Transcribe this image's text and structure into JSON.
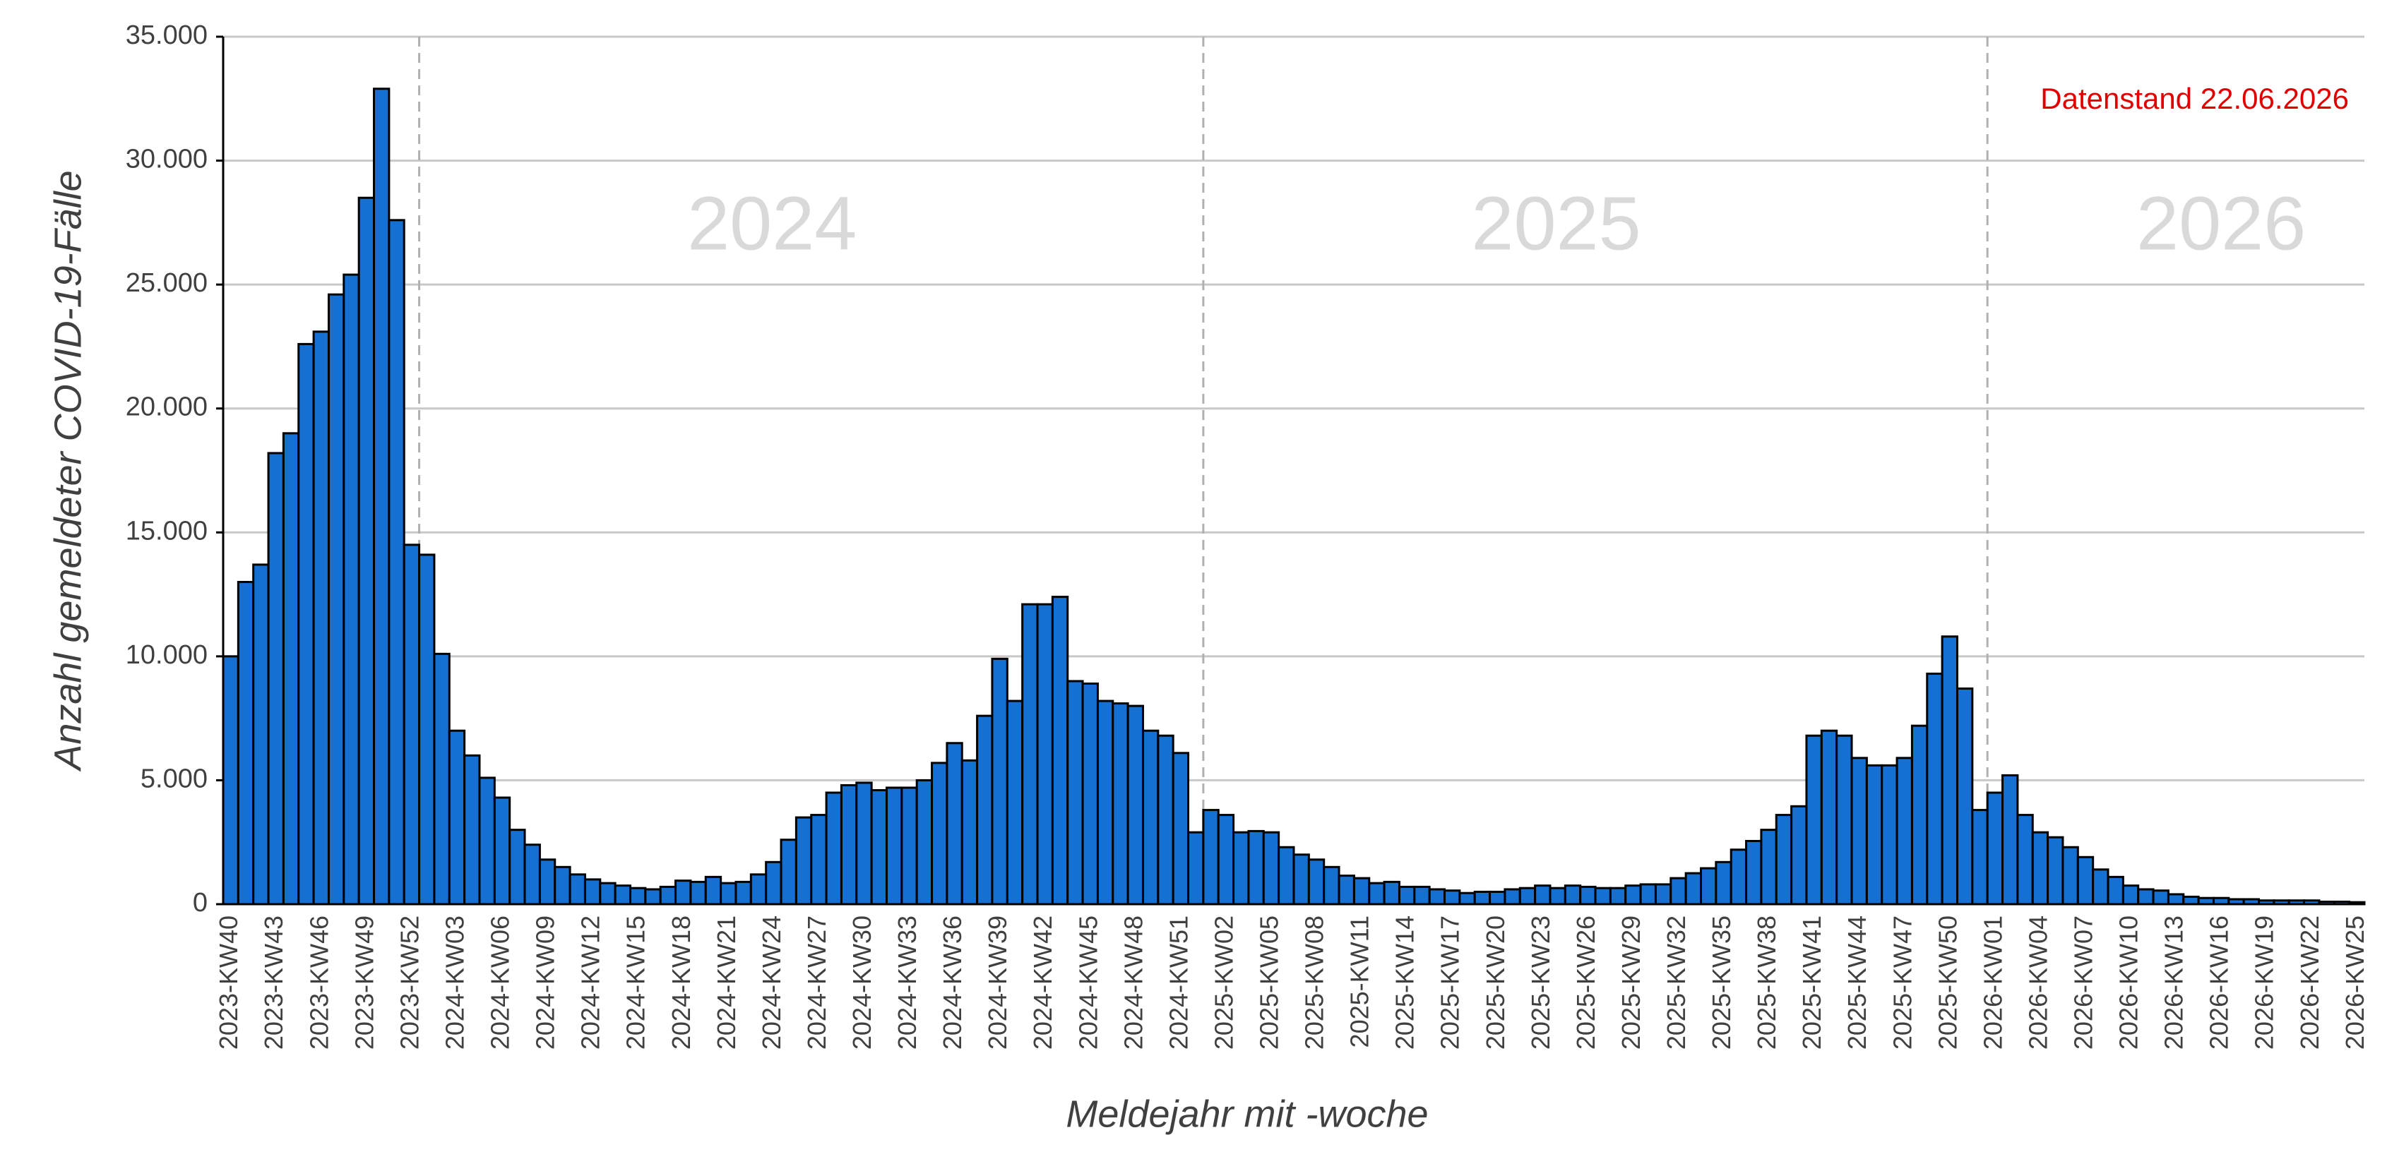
{
  "chart_data": {
    "type": "bar",
    "categories": [
      "2023-KW40",
      null,
      null,
      "2023-KW43",
      null,
      null,
      "2023-KW46",
      null,
      null,
      "2023-KW49",
      null,
      null,
      "2023-KW52",
      null,
      null,
      "2024-KW03",
      null,
      null,
      "2024-KW06",
      null,
      null,
      "2024-KW09",
      null,
      null,
      "2024-KW12",
      null,
      null,
      "2024-KW15",
      null,
      null,
      "2024-KW18",
      null,
      null,
      "2024-KW21",
      null,
      null,
      "2024-KW24",
      null,
      null,
      "2024-KW27",
      null,
      null,
      "2024-KW30",
      null,
      null,
      "2024-KW33",
      null,
      null,
      "2024-KW36",
      null,
      null,
      "2024-KW39",
      null,
      null,
      "2024-KW42",
      null,
      null,
      "2024-KW45",
      null,
      null,
      "2024-KW48",
      null,
      null,
      "2024-KW51",
      null,
      null,
      "2025-KW02",
      null,
      null,
      "2025-KW05",
      null,
      null,
      "2025-KW08",
      null,
      null,
      "2025-KW11",
      null,
      null,
      "2025-KW14",
      null,
      null,
      "2025-KW17",
      null,
      null,
      "2025-KW20",
      null,
      null,
      "2025-KW23",
      null,
      null,
      "2025-KW26",
      null,
      null,
      "2025-KW29",
      null,
      null,
      "2025-KW32",
      null,
      null,
      "2025-KW35",
      null,
      null,
      "2025-KW38",
      null,
      null,
      "2025-KW41",
      null,
      null,
      "2025-KW44",
      null,
      null,
      "2025-KW47",
      null,
      null,
      "2025-KW50",
      null,
      null,
      "2026-KW01",
      null,
      null,
      "2026-KW04",
      null,
      null,
      "2026-KW07",
      null,
      null,
      "2026-KW10",
      null,
      null,
      "2026-KW13",
      null,
      null,
      "2026-KW16",
      null,
      null,
      "2026-KW19",
      null,
      null,
      "2026-KW22",
      null,
      null,
      "2026-KW25"
    ],
    "values": [
      10000,
      13000,
      13700,
      18200,
      19000,
      22600,
      23100,
      24600,
      25400,
      28500,
      32900,
      27600,
      14500,
      14100,
      10100,
      7000,
      6000,
      5100,
      4300,
      3000,
      2400,
      1800,
      1500,
      1200,
      1000,
      850,
      750,
      650,
      600,
      700,
      950,
      900,
      1100,
      850,
      900,
      1200,
      1700,
      2600,
      3500,
      3600,
      4500,
      4800,
      4900,
      4600,
      4700,
      4700,
      5000,
      5700,
      6500,
      5800,
      7600,
      9900,
      8200,
      12100,
      12100,
      12400,
      9000,
      8900,
      8200,
      8100,
      8000,
      7000,
      6800,
      6100,
      2900,
      3800,
      3600,
      2900,
      2950,
      2900,
      2300,
      2000,
      1800,
      1500,
      1150,
      1050,
      850,
      900,
      700,
      700,
      600,
      550,
      450,
      500,
      500,
      600,
      650,
      750,
      650,
      750,
      700,
      650,
      650,
      750,
      800,
      800,
      1050,
      1250,
      1450,
      1700,
      2200,
      2550,
      3000,
      3600,
      3950,
      6800,
      7000,
      6800,
      5900,
      5600,
      5600,
      5900,
      7200,
      9300,
      10800,
      8700,
      3800,
      4500,
      5200,
      3600,
      2900,
      2700,
      2300,
      1900,
      1400,
      1100,
      750,
      600,
      550,
      400,
      300,
      250,
      250,
      200,
      200,
      150,
      150,
      150,
      150,
      100,
      100,
      80
    ],
    "color": "#1570d2",
    "ylim": [
      0,
      35000
    ],
    "yticks": [
      0,
      {
        "value": 5000,
        "label": "5.000"
      },
      {
        "value": 10000,
        "label": "10.000"
      },
      {
        "value": 15000,
        "label": "15.000"
      },
      {
        "value": 20000,
        "label": "20.000"
      },
      {
        "value": 25000,
        "label": "25.000"
      },
      {
        "value": 30000,
        "label": "30.000"
      },
      {
        "value": 35000,
        "label": "35.000"
      }
    ],
    "grid": true,
    "y_label": "Anzahl gemeldeter COVID-19-Fälle",
    "x_label": "Meldejahr mit -woche",
    "year_labels": [
      "2024",
      "2025",
      "2026"
    ],
    "annotation": "Datenstand 22.06.2026"
  }
}
